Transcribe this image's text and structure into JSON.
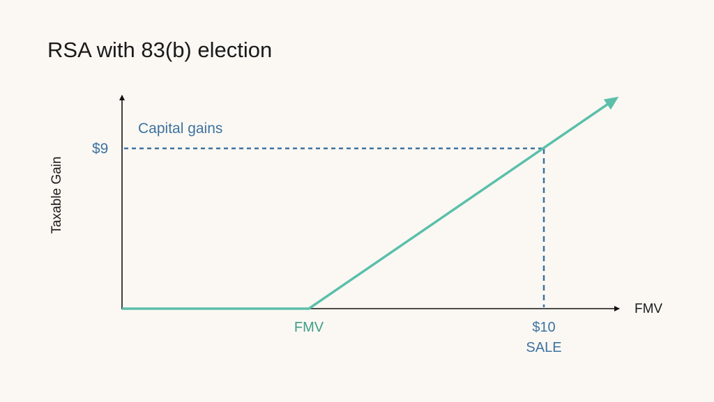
{
  "title": "RSA with 83(b) election",
  "y_axis_label": "Taxable Gain",
  "x_axis_label": "FMV",
  "region_label": "Capital gains",
  "y_marker_label": "$9",
  "x_markers": {
    "fmv": "FMV",
    "sale_price": "$10",
    "sale": "SALE"
  },
  "colors": {
    "payoff_line": "#5bbfaa",
    "guide_lines": "#3d72a0",
    "axes": "#111111",
    "background": "#fbf8f3"
  }
}
